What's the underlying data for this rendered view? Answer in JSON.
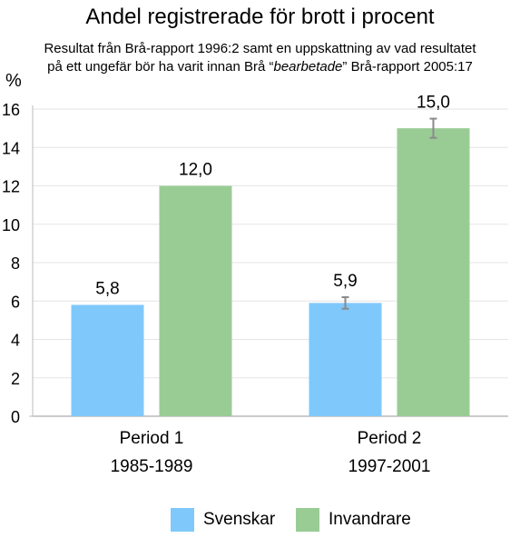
{
  "chart_data": {
    "type": "bar",
    "title": "Andel registrerade för brott i procent",
    "subtitle": {
      "line1": "Resultat från Brå-rapport 1996:2 samt en uppskattning av vad resultatet",
      "line2_prefix": "på ett ungefär bör ha varit innan Brå “",
      "line2_italic": "bearbetade",
      "line2_suffix": "” Brå-rapport 2005:17"
    },
    "ylabel": "%",
    "xlabel": "",
    "ylim": [
      0,
      16
    ],
    "yticks": [
      0,
      2,
      4,
      6,
      8,
      10,
      12,
      14,
      16
    ],
    "grid": true,
    "legend_position": "bottom",
    "categories": [
      {
        "name": "Period 1",
        "years": "1985-1989"
      },
      {
        "name": "Period 2",
        "years": "1997-2001"
      }
    ],
    "series": [
      {
        "name": "Svenskar",
        "color": "#7fc8fb",
        "values": [
          5.8,
          5.9
        ],
        "labels": [
          "5,8",
          "5,9"
        ],
        "error": [
          null,
          [
            5.6,
            6.2
          ]
        ]
      },
      {
        "name": "Invandrare",
        "color": "#99cc95",
        "values": [
          12.0,
          15.0
        ],
        "labels": [
          "12,0",
          "15,0"
        ],
        "error": [
          null,
          [
            14.5,
            15.5
          ]
        ]
      }
    ]
  }
}
